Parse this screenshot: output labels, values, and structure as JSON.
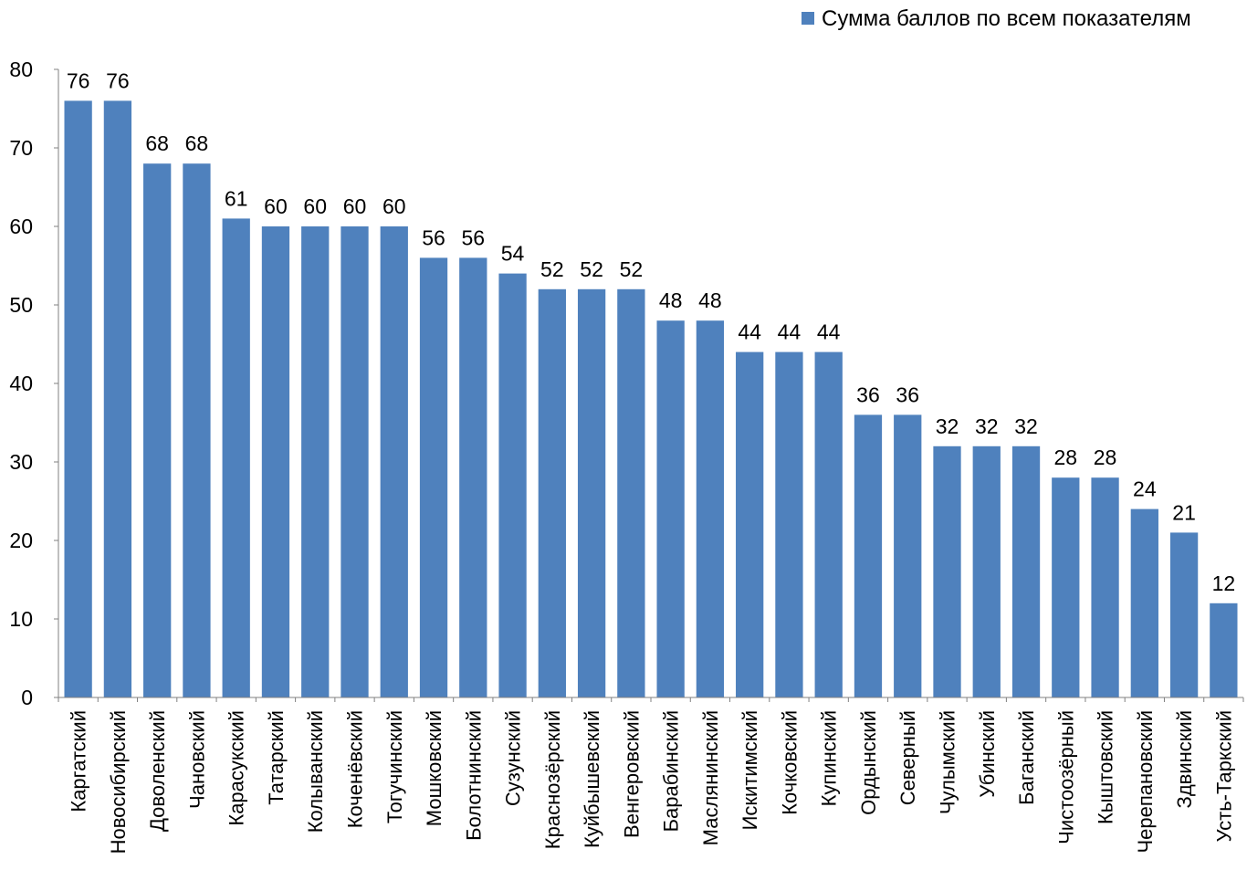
{
  "chart_data": {
    "type": "bar",
    "title": "",
    "xlabel": "",
    "ylabel": "",
    "ylim": [
      0,
      80
    ],
    "yticks": [
      0,
      10,
      20,
      30,
      40,
      50,
      60,
      70,
      80
    ],
    "grid": false,
    "legend_position": "top-right",
    "bar_color": "#4F81BD",
    "categories": [
      "Каргатский",
      "Новосибирский",
      "Доволенский",
      "Чановский",
      "Карасукский",
      "Татарский",
      "Колыванский",
      "Коченёвский",
      "Тогучинский",
      "Мошковский",
      "Болотнинский",
      "Сузунский",
      "Краснозёрский",
      "Куйбышевский",
      "Венгеровский",
      "Барабинский",
      "Маслянинский",
      "Искитимский",
      "Кочковский",
      "Купинский",
      "Ордынский",
      "Северный",
      "Чулымский",
      "Убинский",
      "Баганский",
      "Чистоозёрный",
      "Кыштовский",
      "Черепановский",
      "Здвинский",
      "Усть-Таркский"
    ],
    "series": [
      {
        "name": "Сумма баллов по всем показателям",
        "values": [
          76,
          76,
          68,
          68,
          61,
          60,
          60,
          60,
          60,
          56,
          56,
          54,
          52,
          52,
          52,
          48,
          48,
          44,
          44,
          44,
          36,
          36,
          32,
          32,
          32,
          28,
          28,
          24,
          21,
          12
        ]
      }
    ]
  }
}
